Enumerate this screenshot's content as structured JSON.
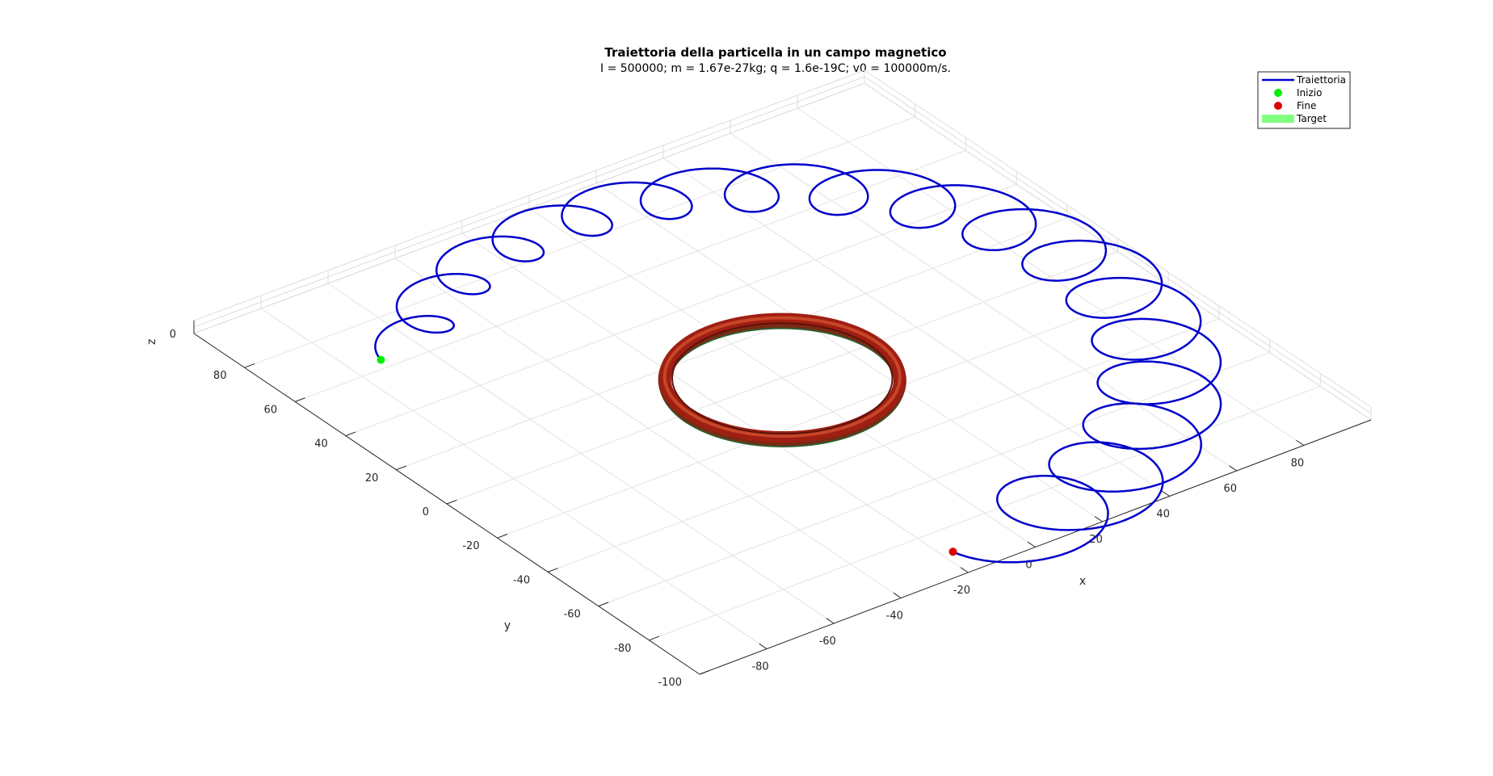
{
  "chart_data": {
    "type": "line",
    "title": "Traiettoria della particella in un campo magnetico",
    "subtitle": "I = 500000; m = 1.67e-27kg; q = 1.6e-19C; v0 = 100000m/s.",
    "xlabel": "x",
    "ylabel": "y",
    "zlabel": "z",
    "xlim": [
      -100,
      100
    ],
    "ylim": [
      -100,
      100
    ],
    "zlim": [
      0,
      2
    ],
    "x_ticks": [
      -80,
      -60,
      -40,
      -20,
      0,
      20,
      40,
      60,
      80
    ],
    "y_ticks": [
      -100,
      -80,
      -60,
      -40,
      -20,
      0,
      20,
      40,
      60,
      80
    ],
    "z_ticks": [
      0
    ],
    "grid": true,
    "view": "3d",
    "legend_position": "top-right",
    "legend": [
      {
        "label": "Traiettoria",
        "kind": "line",
        "color": "#0000cc"
      },
      {
        "label": "Inizio",
        "kind": "marker",
        "color": "#00ee00"
      },
      {
        "label": "Fine",
        "kind": "marker",
        "color": "#dd0000"
      },
      {
        "label": "Target",
        "kind": "patch",
        "color": "#80ff80"
      }
    ],
    "series": [
      {
        "name": "Traiettoria",
        "color": "#0000cc",
        "guiding_center_radius": 90,
        "guiding_center_start_angle_deg": 135,
        "guiding_center_end_angle_deg": -90,
        "gyro_radius_start": 8,
        "gyro_radius_end": 17,
        "gyro_loops": 17,
        "z": 0
      },
      {
        "name": "Inizio",
        "type": "scatter",
        "x": [
          -72
        ],
        "y": [
          80
        ],
        "z": [
          0
        ],
        "color": "#00ee00"
      },
      {
        "name": "Fine",
        "type": "scatter",
        "x": [
          0
        ],
        "y": [
          -100
        ],
        "z": [
          0
        ],
        "color": "#dd0000"
      },
      {
        "name": "Target",
        "type": "torus",
        "center": [
          0,
          0,
          0
        ],
        "major_radius": 28,
        "minor_radius": 2,
        "colors": [
          "#8b1a10",
          "#c23a22",
          "#2a6b2a"
        ]
      }
    ]
  }
}
